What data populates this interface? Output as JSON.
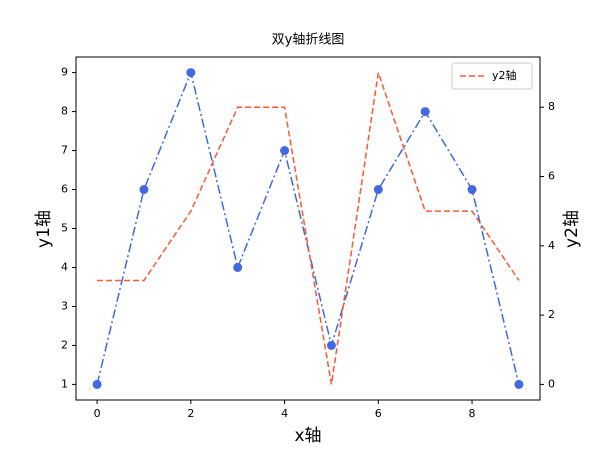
{
  "chart_data": {
    "type": "line",
    "title": "双y轴折线图",
    "x_label": "x轴",
    "y_label": "y1轴",
    "y2_label": "y2轴",
    "x": [
      0,
      1,
      2,
      3,
      4,
      5,
      6,
      7,
      8,
      9
    ],
    "series": [
      {
        "color": "#4169e1",
        "linestyle": "dashdot",
        "marker": "circle",
        "values": [
          1,
          6,
          9,
          4,
          7,
          2,
          6,
          8,
          6,
          1
        ]
      },
      {
        "name": "y2轴",
        "color": "#ff5733",
        "linestyle": "dashed",
        "axis": "y2",
        "values": [
          3,
          3,
          5,
          8,
          8,
          0,
          9,
          5,
          5,
          3
        ]
      }
    ],
    "xlim": [
      -0.45,
      9.45
    ],
    "xticks": [
      0,
      2,
      4,
      6,
      8
    ],
    "ylim": [
      0.6,
      9.4
    ],
    "yticks": [
      1,
      2,
      3,
      4,
      5,
      6,
      7,
      8,
      9
    ],
    "y2lim": [
      -0.45,
      9.45
    ],
    "y2ticks": [
      0,
      2,
      4,
      6,
      8
    ],
    "legend": "upper right"
  }
}
